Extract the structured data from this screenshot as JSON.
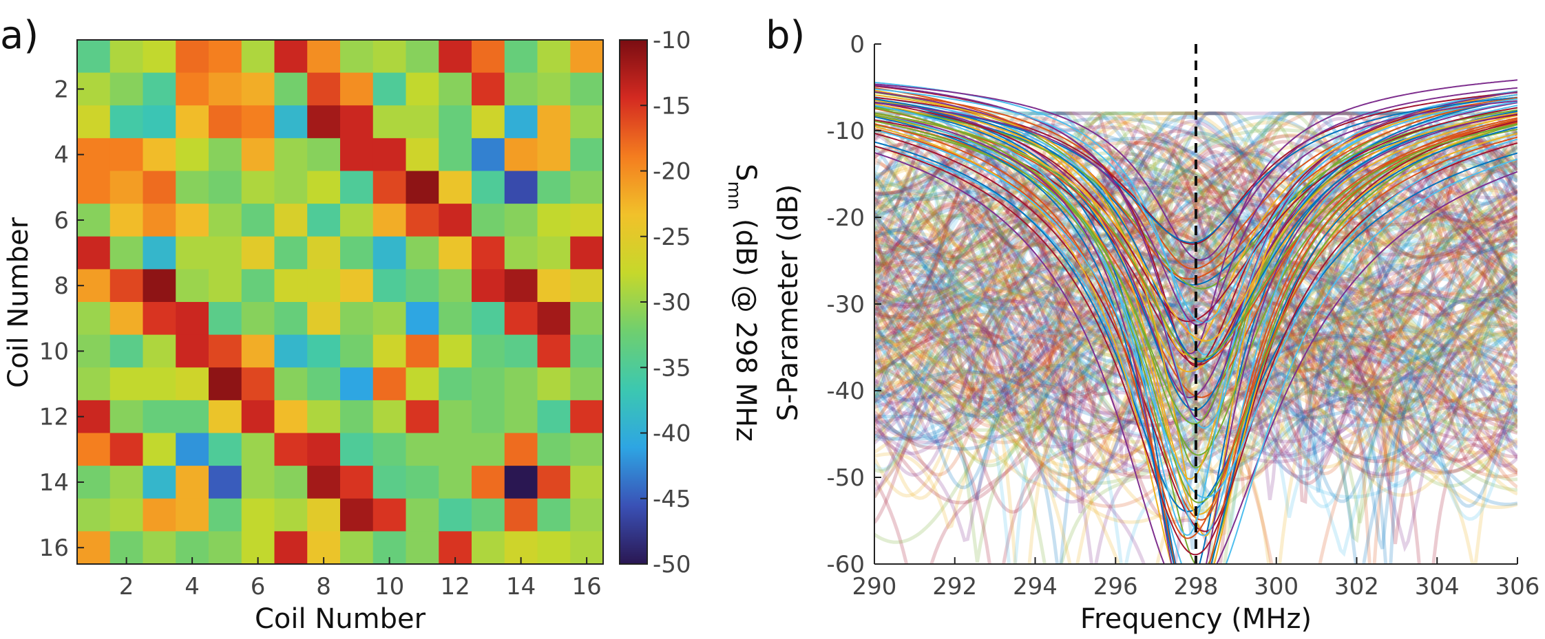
{
  "panels": {
    "a": {
      "label": "a)"
    },
    "b": {
      "label": "b)"
    }
  },
  "chart_data": [
    {
      "type": "heatmap",
      "panel": "a)",
      "xlabel": "Coil Number",
      "ylabel": "Coil Number",
      "x_ticks": [
        2,
        4,
        6,
        8,
        10,
        12,
        14,
        16
      ],
      "y_ticks": [
        2,
        4,
        6,
        8,
        10,
        12,
        14,
        16
      ],
      "colorbar": {
        "label_parts": [
          "S",
          "mn",
          " (dB) @ 298 MHz"
        ],
        "range": [
          -50,
          -10
        ],
        "ticks": [
          -10,
          -15,
          -20,
          -25,
          -30,
          -35,
          -40,
          -45,
          -50
        ],
        "colormap": [
          "#2a1752",
          "#3a51b6",
          "#2ea5e3",
          "#3cc8b0",
          "#6fcf6f",
          "#c6d82b",
          "#f1c12a",
          "#f47d1f",
          "#d42a21",
          "#7a0d12"
        ]
      },
      "rows": 16,
      "cols": 16,
      "values": [
        [
          -34,
          -29,
          -28,
          -18,
          -19,
          -29,
          -14,
          -20,
          -30,
          -29,
          -31,
          -14,
          -18,
          -33,
          -29,
          -21
        ],
        [
          -29,
          -31,
          -35,
          -19,
          -21,
          -22,
          -32,
          -16,
          -20,
          -35,
          -28,
          -31,
          -15,
          -31,
          -30,
          -32
        ],
        [
          -27,
          -36,
          -37,
          -23,
          -18,
          -19,
          -39,
          -12,
          -14,
          -29,
          -29,
          -33,
          -27,
          -40,
          -22,
          -30
        ],
        [
          -19,
          -19,
          -23,
          -28,
          -31,
          -22,
          -30,
          -31,
          -14,
          -14,
          -27,
          -33,
          -43,
          -21,
          -22,
          -33
        ],
        [
          -19,
          -21,
          -18,
          -31,
          -32,
          -29,
          -30,
          -28,
          -35,
          -16,
          -11,
          -24,
          -35,
          -46,
          -33,
          -31
        ],
        [
          -31,
          -23,
          -20,
          -23,
          -30,
          -33,
          -26,
          -35,
          -29,
          -22,
          -16,
          -14,
          -32,
          -31,
          -28,
          -27
        ],
        [
          -14,
          -31,
          -39,
          -29,
          -29,
          -25,
          -33,
          -26,
          -33,
          -39,
          -31,
          -24,
          -15,
          -30,
          -29,
          -14
        ],
        [
          -21,
          -16,
          -11,
          -30,
          -29,
          -33,
          -27,
          -27,
          -24,
          -35,
          -33,
          -31,
          -14,
          -12,
          -24,
          -26
        ],
        [
          -30,
          -22,
          -15,
          -14,
          -34,
          -31,
          -33,
          -25,
          -31,
          -30,
          -41,
          -32,
          -35,
          -15,
          -12,
          -31
        ],
        [
          -31,
          -34,
          -29,
          -14,
          -16,
          -22,
          -39,
          -36,
          -32,
          -27,
          -18,
          -28,
          -33,
          -34,
          -15,
          -33
        ],
        [
          -30,
          -28,
          -28,
          -27,
          -11,
          -16,
          -31,
          -33,
          -41,
          -18,
          -28,
          -33,
          -32,
          -31,
          -29,
          -31
        ],
        [
          -14,
          -31,
          -33,
          -33,
          -24,
          -14,
          -23,
          -29,
          -32,
          -29,
          -15,
          -31,
          -32,
          -31,
          -35,
          -15
        ],
        [
          -19,
          -15,
          -28,
          -42,
          -35,
          -30,
          -15,
          -14,
          -35,
          -33,
          -31,
          -31,
          -31,
          -18,
          -32,
          -31
        ],
        [
          -32,
          -30,
          -39,
          -22,
          -45,
          -30,
          -31,
          -12,
          -15,
          -34,
          -33,
          -31,
          -18,
          -50,
          -16,
          -29
        ],
        [
          -30,
          -29,
          -21,
          -22,
          -33,
          -28,
          -29,
          -25,
          -12,
          -15,
          -31,
          -35,
          -33,
          -17,
          -33,
          -30
        ],
        [
          -21,
          -32,
          -30,
          -32,
          -31,
          -28,
          -14,
          -24,
          -30,
          -33,
          -31,
          -15,
          -29,
          -27,
          -28,
          -29
        ]
      ]
    },
    {
      "type": "line",
      "panel": "b)",
      "xlabel": "Frequency (MHz)",
      "ylabel": "S-Parameter (dB)",
      "xlim": [
        290,
        306
      ],
      "ylim": [
        -60,
        0
      ],
      "x_ticks": [
        290,
        292,
        294,
        296,
        298,
        300,
        302,
        304,
        306
      ],
      "y_ticks": [
        0,
        -10,
        -20,
        -30,
        -40,
        -50,
        -60
      ],
      "vline": {
        "x": 298,
        "style": "dashed"
      },
      "foreground_series": {
        "description_count": 16,
        "colors": [
          "#0072bd",
          "#d95319",
          "#edb120",
          "#7e2f8e",
          "#77ac30",
          "#4dbeee",
          "#a2142f"
        ],
        "resonance_center": 298.0,
        "baseline_db": [
          -3,
          -5
        ],
        "min_db_range": [
          -21,
          -60
        ]
      },
      "background_series": {
        "count": 240,
        "opacity": 0.22,
        "colors": [
          "#0072bd",
          "#d95319",
          "#edb120",
          "#7e2f8e",
          "#77ac30",
          "#4dbeee",
          "#a2142f"
        ],
        "level_db_range": [
          -12,
          -45
        ]
      }
    }
  ]
}
